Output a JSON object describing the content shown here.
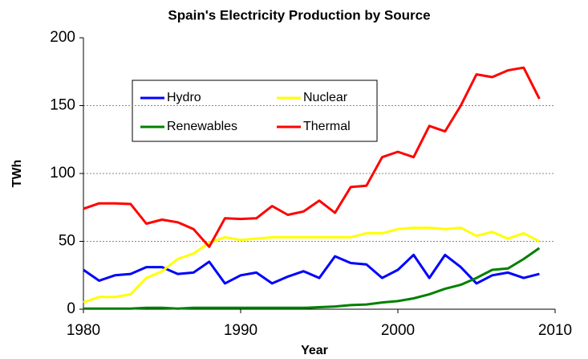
{
  "chart_data": {
    "type": "line",
    "title": "Spain's Electricity Production by Source",
    "x_label": "Year",
    "y_label": "TWh",
    "x": [
      1980,
      1981,
      1982,
      1983,
      1984,
      1985,
      1986,
      1987,
      1988,
      1989,
      1990,
      1991,
      1992,
      1993,
      1994,
      1995,
      1996,
      1997,
      1998,
      1999,
      2000,
      2001,
      2002,
      2003,
      2004,
      2005,
      2006,
      2007,
      2008,
      2009
    ],
    "series": [
      {
        "name": "Hydro",
        "color": "#0000ff",
        "values": [
          29,
          21,
          25,
          26,
          31,
          31,
          26,
          27,
          35,
          19,
          25,
          27,
          19,
          24,
          28,
          23,
          39,
          34,
          33,
          23,
          29,
          40,
          23,
          40,
          31,
          19,
          25,
          27,
          23,
          26
        ]
      },
      {
        "name": "Nuclear",
        "color": "#ffff00",
        "values": [
          5,
          9,
          9,
          11,
          23,
          28,
          37,
          41,
          49,
          53,
          51,
          52,
          53,
          53,
          53,
          53,
          53,
          53,
          56,
          56,
          59,
          60,
          60,
          59,
          60,
          54,
          57,
          52,
          56,
          50
        ]
      },
      {
        "name": "Renewables",
        "color": "#008000",
        "values": [
          0.5,
          0.5,
          0.5,
          0.5,
          1,
          1,
          0.5,
          1,
          1,
          1,
          1,
          1,
          1,
          1,
          1,
          1.5,
          2,
          3,
          3.5,
          5,
          6,
          8,
          11,
          15,
          18,
          23,
          29,
          30,
          37,
          45
        ]
      },
      {
        "name": "Thermal",
        "color": "#ff0000",
        "values": [
          74,
          78,
          78,
          77.5,
          63,
          66,
          64,
          59,
          46,
          67,
          66.5,
          67,
          76,
          69.5,
          72,
          80,
          71,
          90,
          91,
          112,
          116,
          112,
          135,
          131,
          150,
          173,
          171,
          176,
          178,
          155
        ]
      }
    ],
    "xlim": [
      1980,
      2010
    ],
    "xticks": [
      1980,
      1990,
      2000,
      2010
    ],
    "ylim": [
      0,
      200
    ],
    "yticks": [
      0,
      50,
      100,
      150,
      200
    ],
    "grid": true
  }
}
